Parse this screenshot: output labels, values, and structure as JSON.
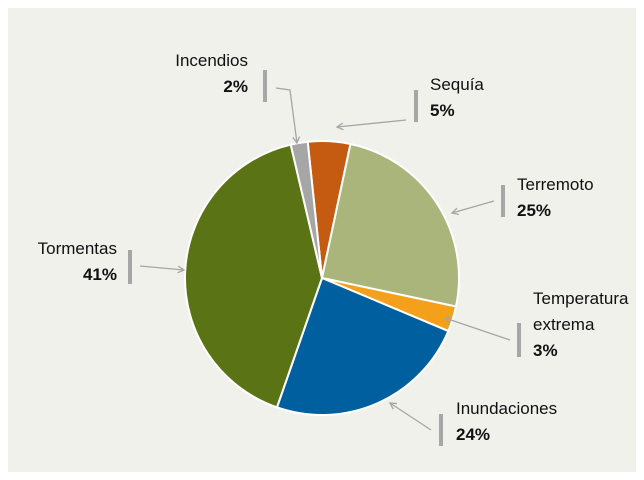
{
  "chart_data": {
    "type": "pie",
    "categories": [
      "Sequía",
      "Terremoto",
      "Temperatura extrema",
      "Inundaciones",
      "Tormentas",
      "Incendios"
    ],
    "values": [
      5,
      25,
      3,
      24,
      41,
      2
    ],
    "value_labels": [
      "5%",
      "25%",
      "3%",
      "24%",
      "41%",
      "2%"
    ],
    "colors": [
      "#c55a11",
      "#a9b57a",
      "#f5a01a",
      "#00609f",
      "#5a7314",
      "#a6a6a6"
    ]
  }
}
